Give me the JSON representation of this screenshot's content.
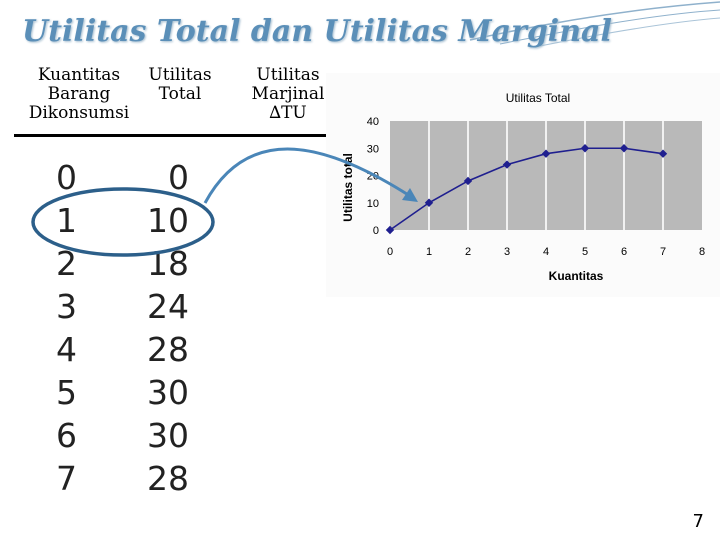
{
  "slide": {
    "title": "Utilitas Total dan Utilitas Marginal",
    "page_number": "7"
  },
  "table": {
    "headers": {
      "quantity": "Kuantitas\nBarang\nDikonsumsi",
      "total": "Utilitas\nTotal",
      "marginal": "Utilitas\nMarjinal\n∆TU"
    },
    "quantity": [
      "0",
      "1",
      "2",
      "3",
      "4",
      "5",
      "6",
      "7"
    ],
    "total": [
      "0",
      "10",
      "18",
      "24",
      "28",
      "30",
      "30",
      "28"
    ]
  },
  "chart_data": {
    "type": "line",
    "title": "Utilitas Total",
    "xlabel": "Kuantitas",
    "ylabel": "Utilitas total",
    "x": [
      0,
      1,
      2,
      3,
      4,
      5,
      6,
      7
    ],
    "x_ticks": [
      "0",
      "1",
      "2",
      "3",
      "4",
      "5",
      "6",
      "7",
      "8"
    ],
    "xlim": [
      0,
      8
    ],
    "y_ticks": [
      "0",
      "10",
      "20",
      "30",
      "40"
    ],
    "ylim": [
      0,
      40
    ],
    "series": [
      {
        "values": [
          0,
          10,
          18,
          24,
          28,
          30,
          30,
          28
        ],
        "color": "#1f1f8f"
      }
    ],
    "grid": "vertical",
    "plot_background": "#b9b9b9",
    "marker": "diamond"
  },
  "colors": {
    "title": "#5b8fb8",
    "highlight_ellipse": "#2c5f8a",
    "arrow": "#4a86b8"
  }
}
